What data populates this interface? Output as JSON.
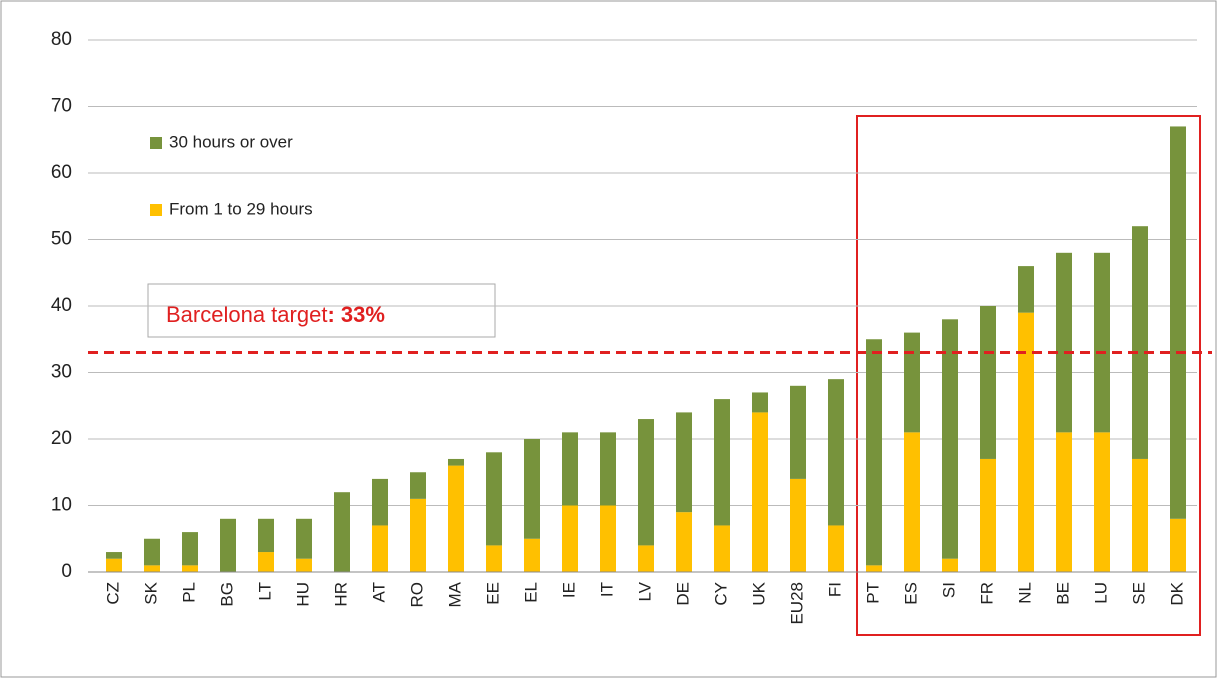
{
  "chart_data": {
    "type": "stacked_bar",
    "categories": [
      "CZ",
      "SK",
      "PL",
      "BG",
      "LT",
      "HU",
      "HR",
      "AT",
      "RO",
      "MA",
      "EE",
      "EL",
      "IE",
      "IT",
      "LV",
      "DE",
      "CY",
      "UK",
      "EU28",
      "FI",
      "PT",
      "ES",
      "SI",
      "FR",
      "NL",
      "BE",
      "LU",
      "SE",
      "DK"
    ],
    "series": [
      {
        "name": "From 1 to 29 hours",
        "color": "#ffc000",
        "values": [
          2,
          1,
          1,
          0,
          3,
          2,
          0,
          7,
          11,
          16,
          4,
          5,
          10,
          10,
          4,
          9,
          7,
          24,
          14,
          7,
          1,
          21,
          2,
          17,
          39,
          21,
          21,
          17,
          8
        ]
      },
      {
        "name": "30 hours or over",
        "color": "#77933c",
        "values": [
          1,
          4,
          5,
          8,
          5,
          6,
          12,
          7,
          4,
          1,
          14,
          15,
          11,
          11,
          19,
          15,
          19,
          3,
          14,
          22,
          34,
          15,
          36,
          23,
          7,
          27,
          27,
          35,
          59
        ]
      }
    ],
    "ylim": [
      0,
      80
    ],
    "yticks": [
      0,
      10,
      20,
      30,
      40,
      50,
      60,
      70,
      80
    ],
    "grid": true,
    "target": {
      "label": "Barcelona target",
      "value": 33,
      "value_label": ": 33%",
      "color": "#e02020"
    }
  }
}
